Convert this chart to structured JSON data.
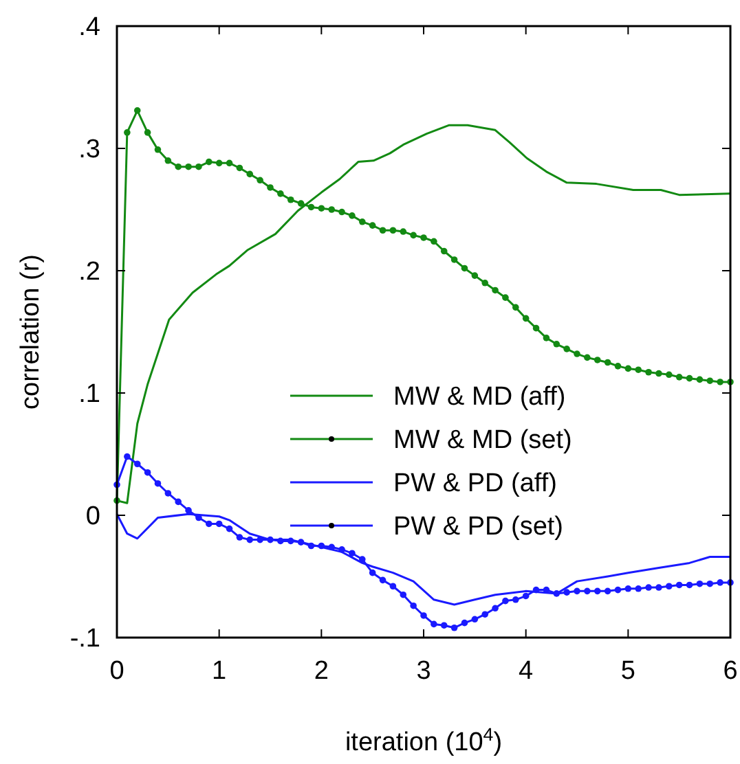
{
  "chart_data": {
    "type": "line",
    "xlabel": "iteration (10$^{4}$)",
    "ylabel": "correlation (r)",
    "xlim": [
      0,
      6
    ],
    "xticks": [
      0,
      1,
      2,
      3,
      4,
      5,
      6
    ],
    "ylim": [
      -0.1,
      0.4
    ],
    "yticks": [
      {
        "value": -0.1,
        "label": "-.1"
      },
      {
        "value": 0,
        "label": "0"
      },
      {
        "value": 0.1,
        "label": ".1"
      },
      {
        "value": 0.2,
        "label": ".2"
      },
      {
        "value": 0.3,
        "label": ".3"
      },
      {
        "value": 0.4,
        "label": ".4"
      }
    ],
    "grid": false,
    "legend": "right",
    "line_style": "solid",
    "series": [
      {
        "name": "MW & MD (aff)",
        "color": "#138a13",
        "marker": "none",
        "x": [
          0,
          0.1,
          0.2,
          0.3,
          0.51,
          0.74,
          0.97,
          1.1,
          1.28,
          1.55,
          1.77,
          2.0,
          2.18,
          2.36,
          2.51,
          2.67,
          2.8,
          3.03,
          3.25,
          3.43,
          3.7,
          3.84,
          4.01,
          4.2,
          4.4,
          4.69,
          5.05,
          5.32,
          5.5,
          6.0
        ],
        "values": [
          0.012,
          0.01,
          0.075,
          0.107,
          0.16,
          0.182,
          0.197,
          0.204,
          0.217,
          0.23,
          0.249,
          0.264,
          0.275,
          0.289,
          0.29,
          0.296,
          0.303,
          0.312,
          0.319,
          0.319,
          0.315,
          0.305,
          0.292,
          0.281,
          0.272,
          0.271,
          0.266,
          0.266,
          0.262,
          0.263
        ]
      },
      {
        "name": "MW & MD (set)",
        "color": "#138a13",
        "marker": "circle",
        "x": [
          0,
          0.1,
          0.2,
          0.3,
          0.4,
          0.5,
          0.6,
          0.7,
          0.8,
          0.9,
          1.0,
          1.1,
          1.2,
          1.3,
          1.4,
          1.5,
          1.6,
          1.7,
          1.8,
          1.9,
          2.0,
          2.1,
          2.2,
          2.3,
          2.4,
          2.5,
          2.6,
          2.7,
          2.8,
          2.9,
          3.0,
          3.1,
          3.2,
          3.3,
          3.4,
          3.5,
          3.6,
          3.7,
          3.8,
          3.9,
          4.0,
          4.1,
          4.2,
          4.3,
          4.4,
          4.5,
          4.6,
          4.7,
          4.8,
          4.9,
          5.0,
          5.1,
          5.2,
          5.3,
          5.4,
          5.5,
          5.6,
          5.7,
          5.8,
          5.9,
          6.0
        ],
        "values": [
          0.012,
          0.313,
          0.331,
          0.313,
          0.299,
          0.29,
          0.285,
          0.285,
          0.285,
          0.289,
          0.288,
          0.288,
          0.284,
          0.279,
          0.274,
          0.268,
          0.263,
          0.258,
          0.255,
          0.252,
          0.251,
          0.25,
          0.248,
          0.245,
          0.24,
          0.237,
          0.233,
          0.233,
          0.232,
          0.229,
          0.227,
          0.224,
          0.216,
          0.209,
          0.202,
          0.196,
          0.19,
          0.184,
          0.178,
          0.17,
          0.161,
          0.153,
          0.145,
          0.14,
          0.136,
          0.132,
          0.129,
          0.127,
          0.125,
          0.122,
          0.12,
          0.119,
          0.117,
          0.116,
          0.115,
          0.113,
          0.112,
          0.111,
          0.11,
          0.109,
          0.109
        ]
      },
      {
        "name": "PW & PD (aff)",
        "color": "#1a1aff",
        "marker": "none",
        "x": [
          0,
          0.1,
          0.2,
          0.4,
          0.7,
          1.0,
          1.1,
          1.3,
          1.5,
          1.7,
          2.0,
          2.2,
          2.4,
          2.5,
          2.7,
          2.9,
          3.1,
          3.3,
          3.5,
          3.7,
          4.0,
          4.3,
          4.5,
          4.8,
          5.0,
          5.3,
          5.6,
          5.8,
          6.0
        ],
        "values": [
          0.001,
          -0.015,
          -0.019,
          -0.002,
          0.001,
          -0.001,
          -0.004,
          -0.015,
          -0.02,
          -0.02,
          -0.026,
          -0.03,
          -0.039,
          -0.042,
          -0.047,
          -0.054,
          -0.069,
          -0.073,
          -0.069,
          -0.065,
          -0.062,
          -0.064,
          -0.054,
          -0.05,
          -0.047,
          -0.043,
          -0.039,
          -0.034,
          -0.034
        ]
      },
      {
        "name": "PW & PD (set)",
        "color": "#1a1aff",
        "marker": "circle",
        "x": [
          0,
          0.1,
          0.2,
          0.3,
          0.4,
          0.5,
          0.6,
          0.7,
          0.8,
          0.9,
          1.0,
          1.1,
          1.2,
          1.3,
          1.4,
          1.5,
          1.6,
          1.7,
          1.8,
          1.9,
          2.0,
          2.1,
          2.2,
          2.3,
          2.4,
          2.5,
          2.6,
          2.7,
          2.8,
          2.9,
          3.0,
          3.1,
          3.2,
          3.3,
          3.4,
          3.5,
          3.6,
          3.7,
          3.8,
          3.9,
          4.0,
          4.1,
          4.2,
          4.3,
          4.4,
          4.5,
          4.6,
          4.7,
          4.8,
          4.9,
          5.0,
          5.1,
          5.2,
          5.3,
          5.4,
          5.5,
          5.6,
          5.7,
          5.8,
          5.9,
          6.0
        ],
        "values": [
          0.025,
          0.048,
          0.042,
          0.035,
          0.026,
          0.018,
          0.011,
          0.004,
          -0.002,
          -0.007,
          -0.007,
          -0.011,
          -0.018,
          -0.02,
          -0.02,
          -0.02,
          -0.021,
          -0.021,
          -0.022,
          -0.025,
          -0.025,
          -0.026,
          -0.028,
          -0.031,
          -0.036,
          -0.047,
          -0.053,
          -0.058,
          -0.065,
          -0.074,
          -0.082,
          -0.089,
          -0.09,
          -0.092,
          -0.088,
          -0.085,
          -0.081,
          -0.076,
          -0.07,
          -0.069,
          -0.066,
          -0.061,
          -0.061,
          -0.064,
          -0.063,
          -0.062,
          -0.062,
          -0.062,
          -0.062,
          -0.061,
          -0.06,
          -0.06,
          -0.059,
          -0.059,
          -0.058,
          -0.057,
          -0.057,
          -0.056,
          -0.056,
          -0.055,
          -0.055
        ]
      }
    ]
  }
}
